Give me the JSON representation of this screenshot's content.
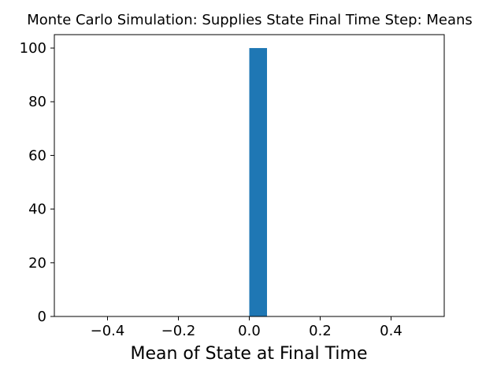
{
  "chart_data": {
    "type": "bar",
    "title": "Monte Carlo Simulation: Supplies State Final Time Step: Means",
    "xlabel": "Mean of State at Final Time",
    "ylabel": "",
    "xlim": [
      -0.55,
      0.55
    ],
    "ylim": [
      0,
      105
    ],
    "x_ticks": [
      -0.4,
      -0.2,
      0.0,
      0.2,
      0.4
    ],
    "x_tick_labels": [
      "−0.4",
      "−0.2",
      "0.0",
      "0.2",
      "0.4"
    ],
    "y_ticks": [
      0,
      20,
      40,
      60,
      80,
      100
    ],
    "y_tick_labels": [
      "0",
      "20",
      "40",
      "60",
      "80",
      "100"
    ],
    "bins": [
      {
        "x0": 0.0,
        "x1": 0.05,
        "count": 100
      }
    ],
    "grid": false,
    "bar_color": "#1f77b4"
  }
}
